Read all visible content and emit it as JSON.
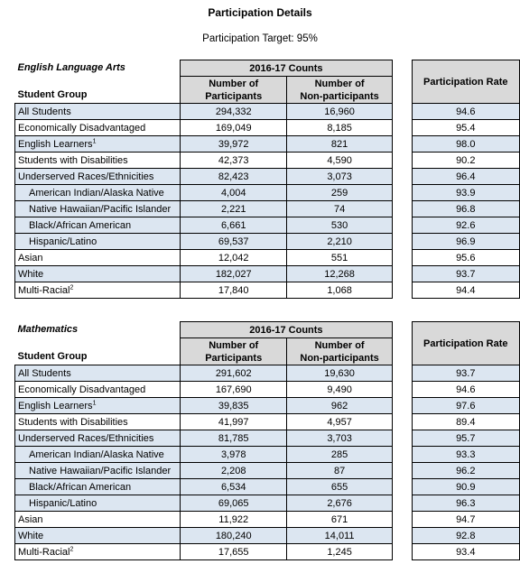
{
  "title": "Participation Details",
  "target": "Participation Target: 95%",
  "headers": {
    "counts": "2016-17 Counts",
    "participants_line1": "Number of",
    "participants_line2": "Participants",
    "nonparticipants_line1": "Number of",
    "nonparticipants_line2": "Non-participants",
    "rate": "Participation Rate",
    "student_group": "Student Group"
  },
  "tables": [
    {
      "subject": "English Language Arts",
      "rows": [
        {
          "group": "All Students",
          "sup": "",
          "participants": "294,332",
          "nonparticipants": "16,960",
          "rate": "94.6",
          "shade": true,
          "indent": false
        },
        {
          "group": "Economically Disadvantaged",
          "sup": "",
          "participants": "169,049",
          "nonparticipants": "8,185",
          "rate": "95.4",
          "shade": false,
          "indent": false
        },
        {
          "group": "English Learners",
          "sup": "1",
          "participants": "39,972",
          "nonparticipants": "821",
          "rate": "98.0",
          "shade": true,
          "indent": false
        },
        {
          "group": "Students with Disabilities",
          "sup": "",
          "participants": "42,373",
          "nonparticipants": "4,590",
          "rate": "90.2",
          "shade": false,
          "indent": false
        },
        {
          "group": "Underserved Races/Ethnicities",
          "sup": "",
          "participants": "82,423",
          "nonparticipants": "3,073",
          "rate": "96.4",
          "shade": true,
          "indent": false
        },
        {
          "group": "American Indian/Alaska Native",
          "sup": "",
          "participants": "4,004",
          "nonparticipants": "259",
          "rate": "93.9",
          "shade": true,
          "indent": true
        },
        {
          "group": "Native Hawaiian/Pacific Islander",
          "sup": "",
          "participants": "2,221",
          "nonparticipants": "74",
          "rate": "96.8",
          "shade": true,
          "indent": true
        },
        {
          "group": "Black/African American",
          "sup": "",
          "participants": "6,661",
          "nonparticipants": "530",
          "rate": "92.6",
          "shade": true,
          "indent": true
        },
        {
          "group": "Hispanic/Latino",
          "sup": "",
          "participants": "69,537",
          "nonparticipants": "2,210",
          "rate": "96.9",
          "shade": true,
          "indent": true
        },
        {
          "group": "Asian",
          "sup": "",
          "participants": "12,042",
          "nonparticipants": "551",
          "rate": "95.6",
          "shade": false,
          "indent": false
        },
        {
          "group": "White",
          "sup": "",
          "participants": "182,027",
          "nonparticipants": "12,268",
          "rate": "93.7",
          "shade": true,
          "indent": false
        },
        {
          "group": "Multi-Racial",
          "sup": "2",
          "participants": "17,840",
          "nonparticipants": "1,068",
          "rate": "94.4",
          "shade": false,
          "indent": false
        }
      ]
    },
    {
      "subject": "Mathematics",
      "rows": [
        {
          "group": "All Students",
          "sup": "",
          "participants": "291,602",
          "nonparticipants": "19,630",
          "rate": "93.7",
          "shade": true,
          "indent": false
        },
        {
          "group": "Economically Disadvantaged",
          "sup": "",
          "participants": "167,690",
          "nonparticipants": "9,490",
          "rate": "94.6",
          "shade": false,
          "indent": false
        },
        {
          "group": "English Learners",
          "sup": "1",
          "participants": "39,835",
          "nonparticipants": "962",
          "rate": "97.6",
          "shade": true,
          "indent": false
        },
        {
          "group": "Students with Disabilities",
          "sup": "",
          "participants": "41,997",
          "nonparticipants": "4,957",
          "rate": "89.4",
          "shade": false,
          "indent": false
        },
        {
          "group": "Underserved Races/Ethnicities",
          "sup": "",
          "participants": "81,785",
          "nonparticipants": "3,703",
          "rate": "95.7",
          "shade": true,
          "indent": false
        },
        {
          "group": "American Indian/Alaska Native",
          "sup": "",
          "participants": "3,978",
          "nonparticipants": "285",
          "rate": "93.3",
          "shade": true,
          "indent": true
        },
        {
          "group": "Native Hawaiian/Pacific Islander",
          "sup": "",
          "participants": "2,208",
          "nonparticipants": "87",
          "rate": "96.2",
          "shade": true,
          "indent": true
        },
        {
          "group": "Black/African American",
          "sup": "",
          "participants": "6,534",
          "nonparticipants": "655",
          "rate": "90.9",
          "shade": true,
          "indent": true
        },
        {
          "group": "Hispanic/Latino",
          "sup": "",
          "participants": "69,065",
          "nonparticipants": "2,676",
          "rate": "96.3",
          "shade": true,
          "indent": true
        },
        {
          "group": "Asian",
          "sup": "",
          "participants": "11,922",
          "nonparticipants": "671",
          "rate": "94.7",
          "shade": false,
          "indent": false
        },
        {
          "group": "White",
          "sup": "",
          "participants": "180,240",
          "nonparticipants": "14,011",
          "rate": "92.8",
          "shade": true,
          "indent": false
        },
        {
          "group": "Multi-Racial",
          "sup": "2",
          "participants": "17,655",
          "nonparticipants": "1,245",
          "rate": "93.4",
          "shade": false,
          "indent": false
        }
      ]
    }
  ]
}
